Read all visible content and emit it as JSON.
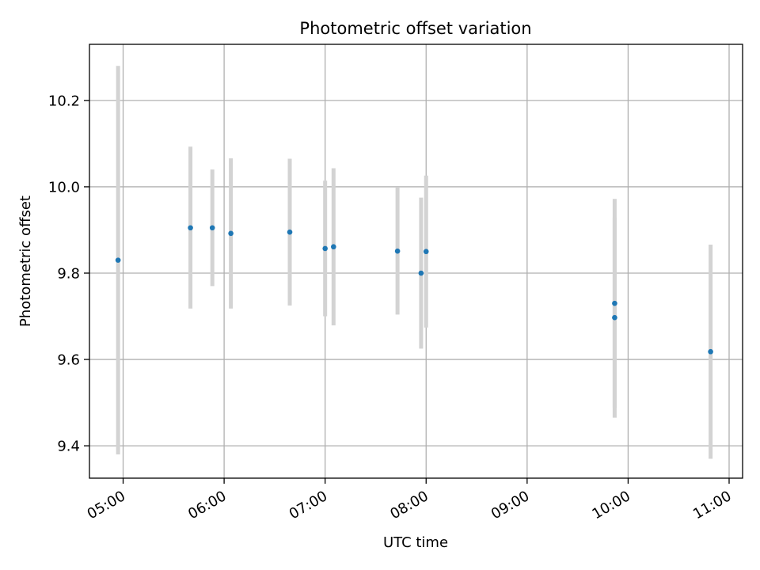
{
  "chart_data": {
    "type": "scatter",
    "title": "Photometric offset variation",
    "xlabel": "UTC time",
    "ylabel": "Photometric offset",
    "x_tick_labels": [
      "05:00",
      "06:00",
      "07:00",
      "08:00",
      "09:00",
      "10:00",
      "11:00"
    ],
    "y_tick_labels": [
      "9.4",
      "9.6",
      "9.8",
      "10.0",
      "10.2"
    ],
    "y_ticks": [
      9.4,
      9.6,
      9.8,
      10.0,
      10.2
    ],
    "xlim": [
      "04:40",
      "11:08"
    ],
    "ylim": [
      9.325,
      10.33
    ],
    "grid": true,
    "legend": "none",
    "point_color": "#1f77b4",
    "errorbar_color": "#d3d3d3",
    "points": [
      {
        "x": "04:57",
        "y": 9.83,
        "ylow": 9.38,
        "yhigh": 10.28
      },
      {
        "x": "05:40",
        "y": 9.905,
        "ylow": 9.718,
        "yhigh": 10.093
      },
      {
        "x": "05:53",
        "y": 9.905,
        "ylow": 9.77,
        "yhigh": 10.04
      },
      {
        "x": "06:04",
        "y": 9.892,
        "ylow": 9.718,
        "yhigh": 10.066
      },
      {
        "x": "06:39",
        "y": 9.895,
        "ylow": 9.725,
        "yhigh": 10.065
      },
      {
        "x": "07:00",
        "y": 9.857,
        "ylow": 9.7,
        "yhigh": 10.014
      },
      {
        "x": "07:05",
        "y": 9.861,
        "ylow": 9.679,
        "yhigh": 10.043
      },
      {
        "x": "07:43",
        "y": 9.851,
        "ylow": 9.704,
        "yhigh": 9.998
      },
      {
        "x": "07:57",
        "y": 9.8,
        "ylow": 9.625,
        "yhigh": 9.975
      },
      {
        "x": "08:00",
        "y": 9.85,
        "ylow": 9.674,
        "yhigh": 10.026
      },
      {
        "x": "09:52",
        "y": 9.73,
        "ylow": 9.488,
        "yhigh": 9.972
      },
      {
        "x": "09:52",
        "y": 9.697,
        "ylow": 9.465,
        "yhigh": 9.929
      },
      {
        "x": "10:49",
        "y": 9.618,
        "ylow": 9.37,
        "yhigh": 9.866
      }
    ]
  }
}
